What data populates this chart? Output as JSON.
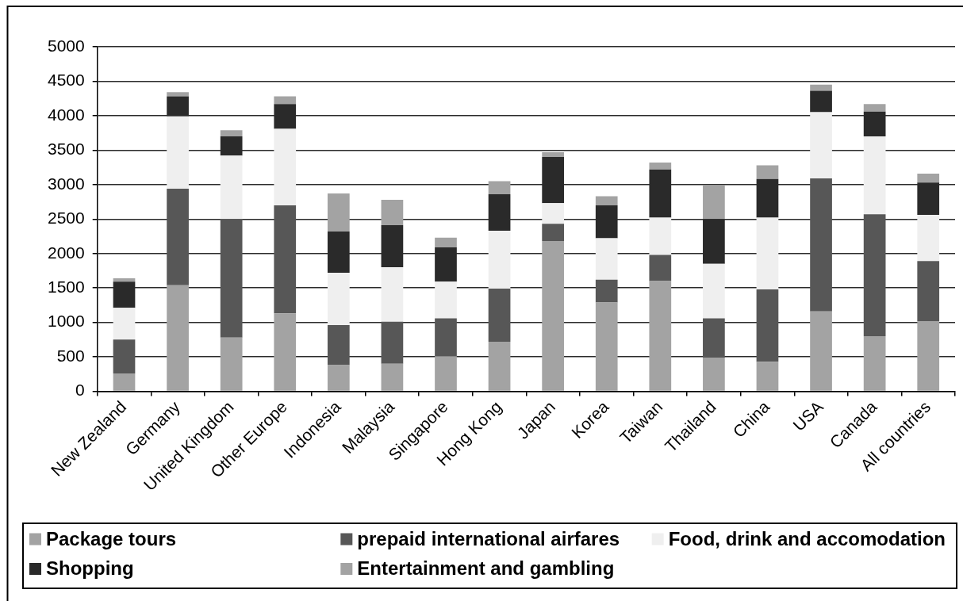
{
  "chart_data": {
    "type": "bar",
    "stacked": true,
    "categories": [
      "New Zealand",
      "Germany",
      "United Kingdom",
      "Other Europe",
      "Indonesia",
      "Malaysia",
      "Singapore",
      "Hong Kong",
      "Japan",
      "Korea",
      "Taiwan",
      "Thailand",
      "China",
      "USA",
      "Canada",
      "All countries"
    ],
    "series": [
      {
        "name": "Package tours",
        "color": "#a3a3a3",
        "values": [
          260,
          1540,
          780,
          1130,
          380,
          400,
          510,
          720,
          2180,
          1290,
          1600,
          490,
          430,
          1160,
          800,
          1020
        ]
      },
      {
        "name": "prepaid international airfares",
        "color": "#575757",
        "values": [
          490,
          1400,
          1720,
          1570,
          580,
          610,
          550,
          770,
          250,
          330,
          380,
          570,
          1050,
          1930,
          1770,
          870
        ]
      },
      {
        "name": "Food, drink and accomodation",
        "color": "#efefef",
        "values": [
          460,
          1050,
          920,
          1110,
          760,
          790,
          530,
          840,
          300,
          600,
          540,
          790,
          1040,
          960,
          1130,
          670
        ]
      },
      {
        "name": "Shopping",
        "color": "#2a2a2a",
        "values": [
          380,
          290,
          280,
          360,
          600,
          610,
          500,
          530,
          670,
          480,
          700,
          650,
          560,
          310,
          360,
          470
        ]
      },
      {
        "name": "Entertainment and gambling",
        "color": "#a3a3a3",
        "values": [
          50,
          60,
          90,
          110,
          550,
          370,
          140,
          190,
          70,
          130,
          100,
          490,
          200,
          90,
          110,
          130
        ]
      }
    ],
    "ylim": [
      0,
      5000
    ],
    "yticks": [
      0,
      500,
      1000,
      1500,
      2000,
      2500,
      3000,
      3500,
      4000,
      4500,
      5000
    ],
    "grid": "y",
    "legend": "bottom"
  }
}
